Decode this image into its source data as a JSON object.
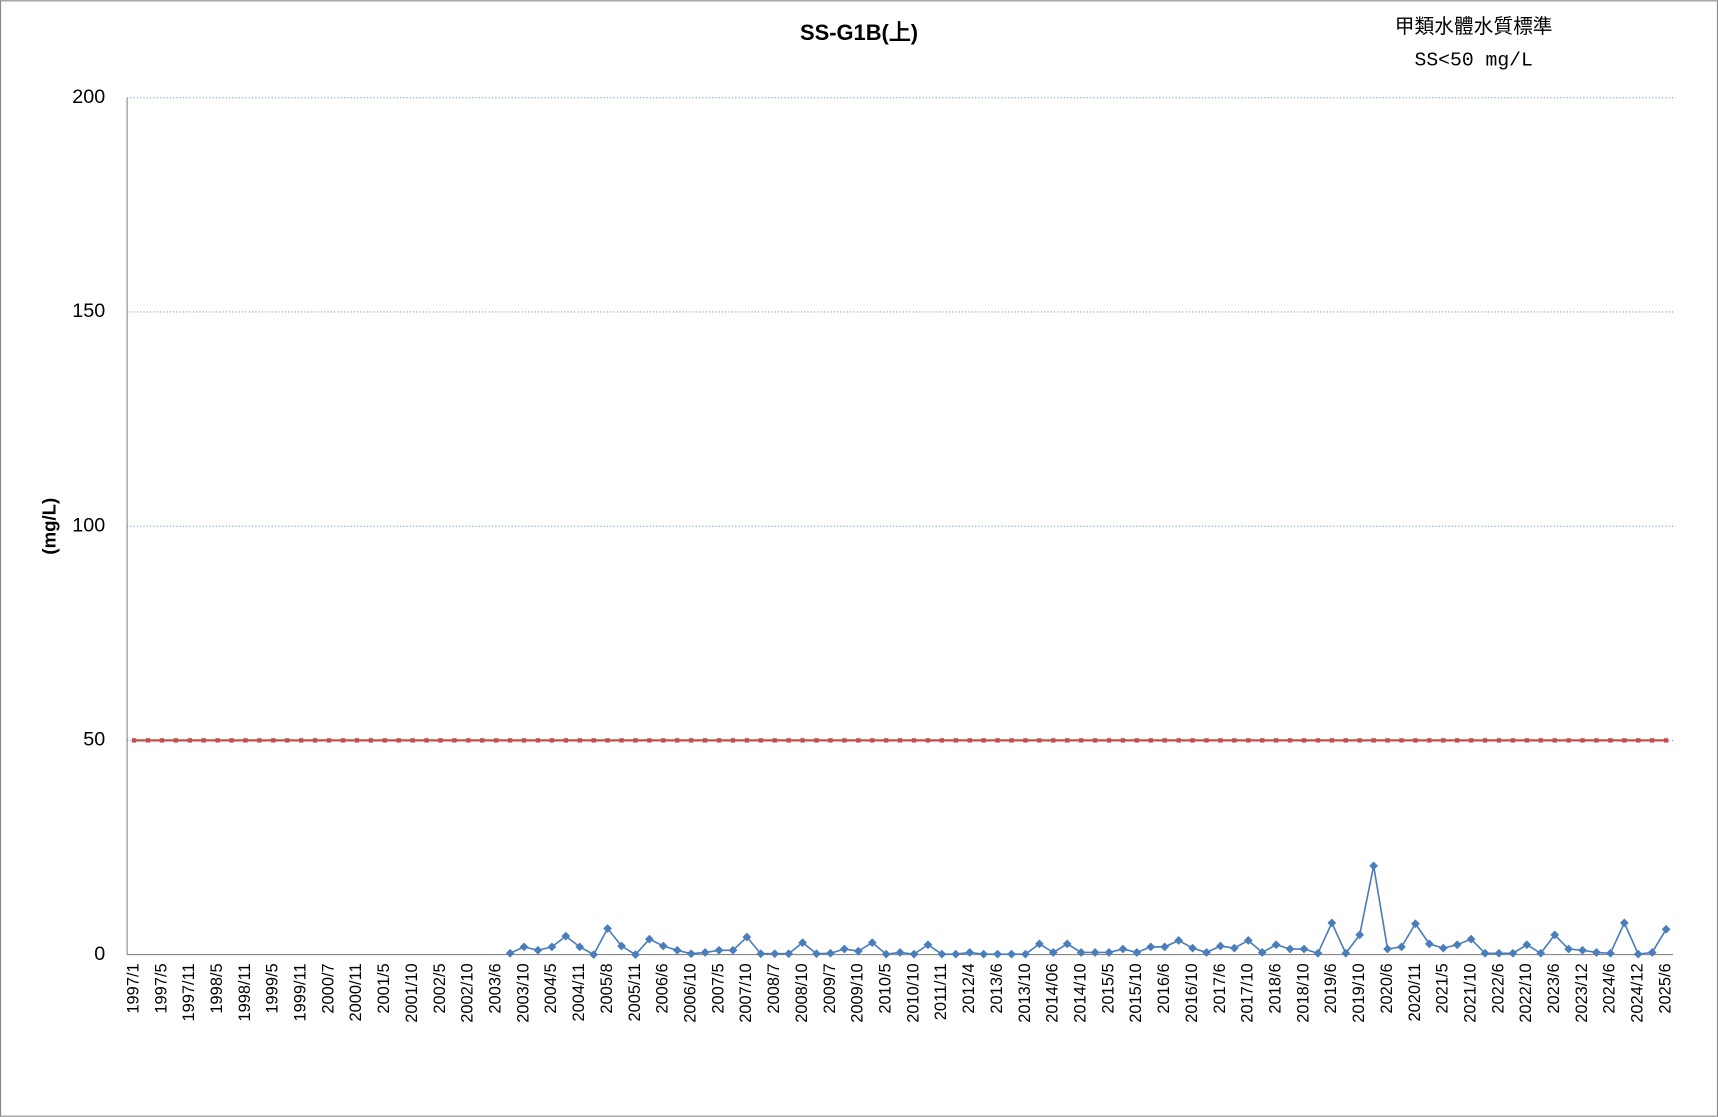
{
  "chart_data": {
    "type": "line",
    "title": "SS-G1B(上)",
    "y_label": "(mg/L)",
    "annotations": [
      "甲類水體水質標準",
      "SS<50 mg/L"
    ],
    "categories": [
      "1997/1",
      null,
      "1997/5",
      null,
      "1997/11",
      null,
      "1998/5",
      null,
      "1998/11",
      null,
      "1999/5",
      null,
      "1999/11",
      null,
      "2000/7",
      null,
      "2000/11",
      null,
      "2001/5",
      null,
      "2001/10",
      null,
      "2002/5",
      null,
      "2002/10",
      null,
      "2003/6",
      null,
      "2003/10",
      null,
      "2004/5",
      null,
      "2004/11",
      null,
      "2005/8",
      null,
      "2005/11",
      null,
      "2006/6",
      null,
      "2006/10",
      null,
      "2007/5",
      null,
      "2007/10",
      null,
      "2008/7",
      null,
      "2008/10",
      null,
      "2009/7",
      null,
      "2009/10",
      null,
      "2010/5",
      null,
      "2010/10",
      null,
      "2011/11",
      null,
      "2012/4",
      null,
      "2013/6",
      null,
      "2013/10",
      null,
      "2014/06",
      null,
      "2014/10",
      null,
      "2015/5",
      null,
      "2015/10",
      null,
      "2016/6",
      null,
      "2016/10",
      null,
      "2017/6",
      null,
      "2017/10",
      null,
      "2018/6",
      null,
      "2018/10",
      null,
      "2019/6",
      null,
      "2019/10",
      null,
      "2020/6",
      null,
      "2020/11",
      null,
      "2021/5",
      null,
      "2021/10",
      null,
      "2022/6",
      null,
      "2022/10",
      null,
      "2023/6",
      null,
      "2023/12",
      null,
      "2024/6",
      null,
      "2024/12",
      null,
      "2025/6"
    ],
    "series": [
      {
        "color": "#4a7ebb",
        "marker": "diamond",
        "values": [
          null,
          null,
          null,
          null,
          null,
          null,
          null,
          null,
          null,
          null,
          null,
          null,
          null,
          null,
          null,
          null,
          null,
          null,
          null,
          null,
          null,
          null,
          null,
          null,
          null,
          null,
          null,
          0.3,
          1.8,
          1.0,
          1.8,
          4.3,
          1.8,
          0,
          6.1,
          2.0,
          0,
          3.6,
          2.0,
          1.0,
          0.2,
          0.5,
          1.0,
          1.0,
          4.1,
          0.2,
          0.2,
          0.2,
          2.8,
          0.2,
          0.3,
          1.3,
          0.8,
          2.8,
          0.1,
          0.5,
          0.1,
          2.3,
          0.1,
          0.1,
          0.5,
          0.1,
          0.1,
          0.1,
          0.1,
          2.5,
          0.5,
          2.5,
          0.5,
          0.5,
          0.5,
          1.3,
          0.5,
          1.8,
          1.8,
          3.3,
          1.5,
          0.5,
          2.0,
          1.5,
          3.3,
          0.5,
          2.3,
          1.3,
          1.3,
          0.3,
          7.4,
          0.3,
          4.6,
          20.7,
          1.3,
          1.8,
          7.2,
          2.5,
          1.5,
          2.3,
          3.6,
          0.3,
          0.3,
          0.3,
          2.3,
          0.3,
          4.6,
          1.3,
          1.0,
          0.5,
          0.3,
          7.4,
          0.1,
          0.5,
          5.9
        ]
      },
      {
        "color": "#c0504d",
        "marker": "square",
        "values": [
          50,
          50,
          50,
          50,
          50,
          50,
          50,
          50,
          50,
          50,
          50,
          50,
          50,
          50,
          50,
          50,
          50,
          50,
          50,
          50,
          50,
          50,
          50,
          50,
          50,
          50,
          50,
          50,
          50,
          50,
          50,
          50,
          50,
          50,
          50,
          50,
          50,
          50,
          50,
          50,
          50,
          50,
          50,
          50,
          50,
          50,
          50,
          50,
          50,
          50,
          50,
          50,
          50,
          50,
          50,
          50,
          50,
          50,
          50,
          50,
          50,
          50,
          50,
          50,
          50,
          50,
          50,
          50,
          50,
          50,
          50,
          50,
          50,
          50,
          50,
          50,
          50,
          50,
          50,
          50,
          50,
          50,
          50,
          50,
          50,
          50,
          50,
          50,
          50,
          50,
          50,
          50,
          50,
          50,
          50,
          50,
          50,
          50,
          50,
          50,
          50,
          50,
          50,
          50,
          50,
          50,
          50,
          50,
          50,
          50,
          50
        ]
      }
    ],
    "ylim": [
      0,
      200
    ],
    "yticks": [
      0,
      50,
      100,
      150,
      200
    ],
    "grid": true
  }
}
